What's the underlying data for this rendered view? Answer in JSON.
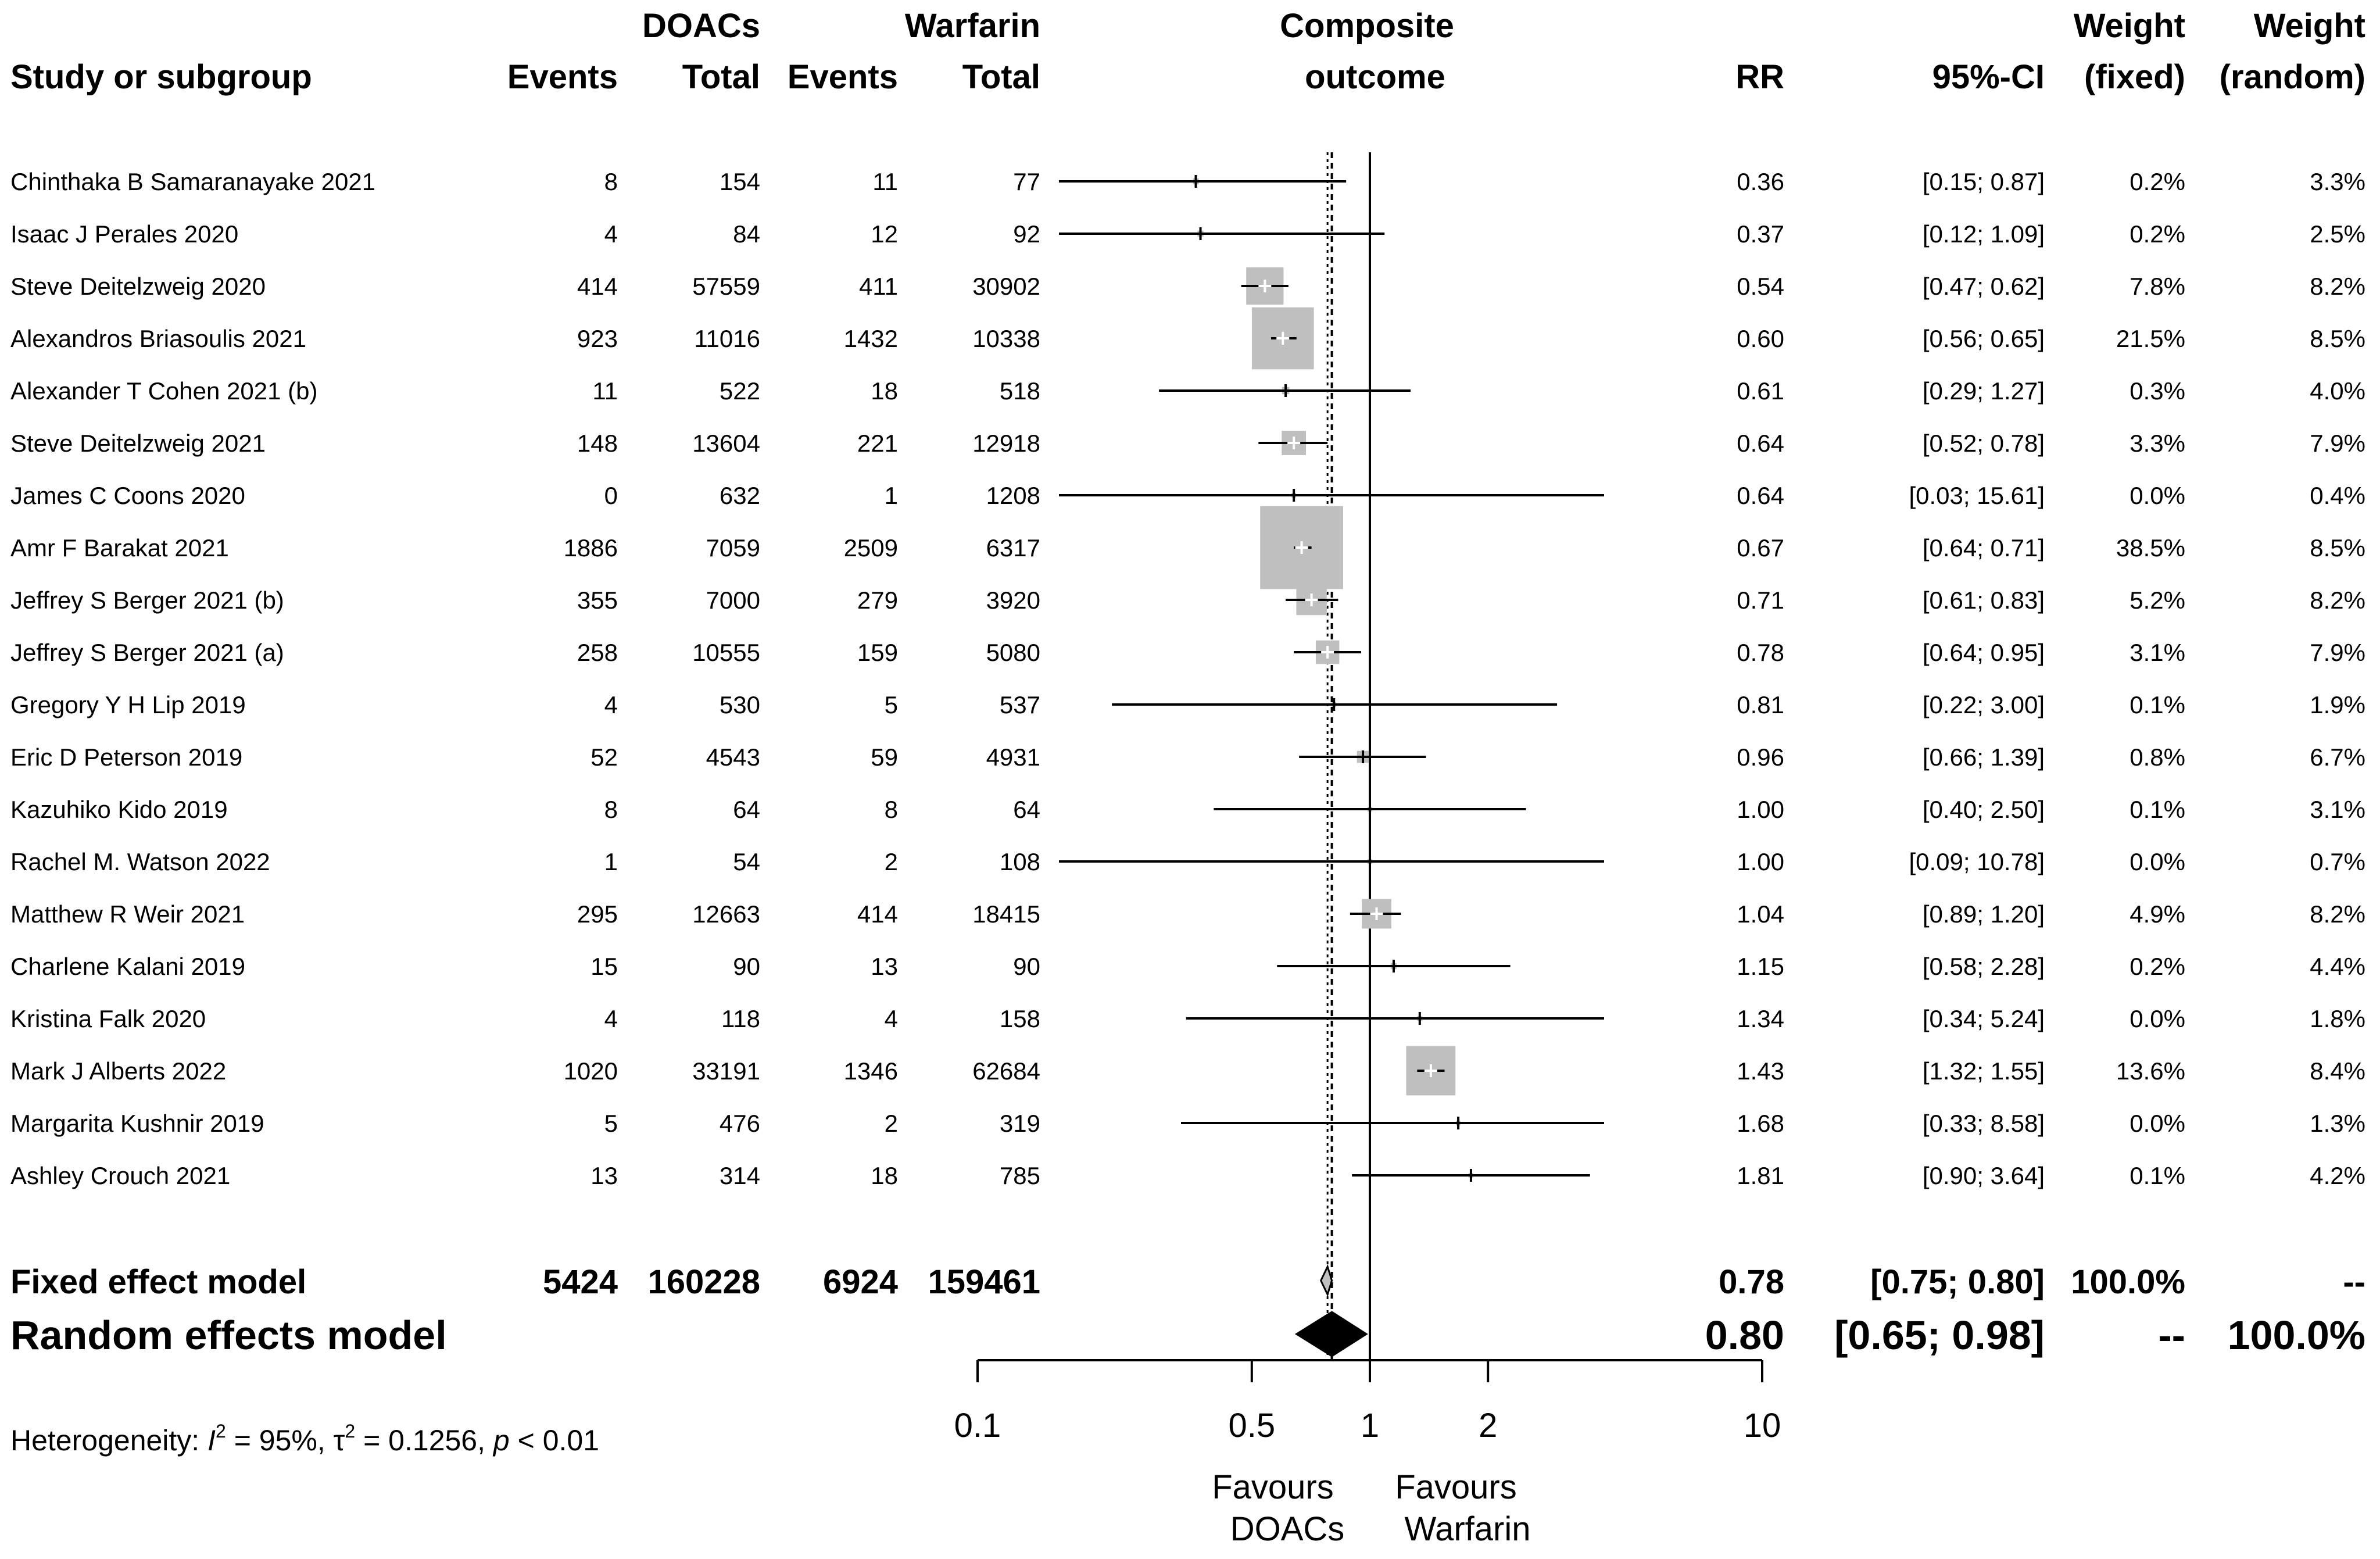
{
  "chart_data": {
    "type": "forest",
    "headers": {
      "study": "Study or subgroup",
      "doacs_group": "DOACs",
      "warfarin_group": "Warfarin",
      "events": "Events",
      "total": "Total",
      "plot_title_line1": "Composite",
      "plot_title_line2": "outcome",
      "rr": "RR",
      "ci": "95%-CI",
      "weight_line1": "Weight",
      "weight_fixed": "(fixed)",
      "weight_random": "(random)"
    },
    "studies": [
      {
        "name": "Chinthaka B Samaranayake 2021",
        "doac_events": "8",
        "doac_total": "154",
        "warf_events": "11",
        "warf_total": "77",
        "rr": 0.36,
        "lo": 0.15,
        "hi": 0.87,
        "rr_text": "0.36",
        "ci_text": "[0.15;  0.87]",
        "w_fixed": "0.2%",
        "w_random": "3.3%",
        "w_fixed_value": 0.2
      },
      {
        "name": "Isaac J Perales 2020",
        "doac_events": "4",
        "doac_total": "84",
        "warf_events": "12",
        "warf_total": "92",
        "rr": 0.37,
        "lo": 0.12,
        "hi": 1.09,
        "rr_text": "0.37",
        "ci_text": "[0.12;  1.09]",
        "w_fixed": "0.2%",
        "w_random": "2.5%",
        "w_fixed_value": 0.2
      },
      {
        "name": "Steve Deitelzweig 2020",
        "doac_events": "414",
        "doac_total": "57559",
        "warf_events": "411",
        "warf_total": "30902",
        "rr": 0.54,
        "lo": 0.47,
        "hi": 0.62,
        "rr_text": "0.54",
        "ci_text": "[0.47;  0.62]",
        "w_fixed": "7.8%",
        "w_random": "8.2%",
        "w_fixed_value": 7.8
      },
      {
        "name": "Alexandros Briasoulis 2021",
        "doac_events": "923",
        "doac_total": "11016",
        "warf_events": "1432",
        "warf_total": "10338",
        "rr": 0.6,
        "lo": 0.56,
        "hi": 0.65,
        "rr_text": "0.60",
        "ci_text": "[0.56;  0.65]",
        "w_fixed": "21.5%",
        "w_random": "8.5%",
        "w_fixed_value": 21.5
      },
      {
        "name": "Alexander T Cohen 2021 (b)",
        "doac_events": "11",
        "doac_total": "522",
        "warf_events": "18",
        "warf_total": "518",
        "rr": 0.61,
        "lo": 0.29,
        "hi": 1.27,
        "rr_text": "0.61",
        "ci_text": "[0.29;  1.27]",
        "w_fixed": "0.3%",
        "w_random": "4.0%",
        "w_fixed_value": 0.3
      },
      {
        "name": "Steve Deitelzweig 2021",
        "doac_events": "148",
        "doac_total": "13604",
        "warf_events": "221",
        "warf_total": "12918",
        "rr": 0.64,
        "lo": 0.52,
        "hi": 0.78,
        "rr_text": "0.64",
        "ci_text": "[0.52;  0.78]",
        "w_fixed": "3.3%",
        "w_random": "7.9%",
        "w_fixed_value": 3.3
      },
      {
        "name": "James C Coons 2020",
        "doac_events": "0",
        "doac_total": "632",
        "warf_events": "1",
        "warf_total": "1208",
        "rr": 0.64,
        "lo": 0.03,
        "hi": 15.61,
        "rr_text": "0.64",
        "ci_text": "[0.03; 15.61]",
        "w_fixed": "0.0%",
        "w_random": "0.4%",
        "w_fixed_value": 0.0
      },
      {
        "name": "Amr F Barakat 2021",
        "doac_events": "1886",
        "doac_total": "7059",
        "warf_events": "2509",
        "warf_total": "6317",
        "rr": 0.67,
        "lo": 0.64,
        "hi": 0.71,
        "rr_text": "0.67",
        "ci_text": "[0.64;  0.71]",
        "w_fixed": "38.5%",
        "w_random": "8.5%",
        "w_fixed_value": 38.5
      },
      {
        "name": "Jeffrey S Berger 2021 (b)",
        "doac_events": "355",
        "doac_total": "7000",
        "warf_events": "279",
        "warf_total": "3920",
        "rr": 0.71,
        "lo": 0.61,
        "hi": 0.83,
        "rr_text": "0.71",
        "ci_text": "[0.61;  0.83]",
        "w_fixed": "5.2%",
        "w_random": "8.2%",
        "w_fixed_value": 5.2
      },
      {
        "name": "Jeffrey S Berger 2021 (a)",
        "doac_events": "258",
        "doac_total": "10555",
        "warf_events": "159",
        "warf_total": "5080",
        "rr": 0.78,
        "lo": 0.64,
        "hi": 0.95,
        "rr_text": "0.78",
        "ci_text": "[0.64;  0.95]",
        "w_fixed": "3.1%",
        "w_random": "7.9%",
        "w_fixed_value": 3.1
      },
      {
        "name": "Gregory Y H Lip 2019",
        "doac_events": "4",
        "doac_total": "530",
        "warf_events": "5",
        "warf_total": "537",
        "rr": 0.81,
        "lo": 0.22,
        "hi": 3.0,
        "rr_text": "0.81",
        "ci_text": "[0.22;  3.00]",
        "w_fixed": "0.1%",
        "w_random": "1.9%",
        "w_fixed_value": 0.1
      },
      {
        "name": "Eric D Peterson 2019",
        "doac_events": "52",
        "doac_total": "4543",
        "warf_events": "59",
        "warf_total": "4931",
        "rr": 0.96,
        "lo": 0.66,
        "hi": 1.39,
        "rr_text": "0.96",
        "ci_text": "[0.66;  1.39]",
        "w_fixed": "0.8%",
        "w_random": "6.7%",
        "w_fixed_value": 0.8
      },
      {
        "name": "Kazuhiko Kido 2019",
        "doac_events": "8",
        "doac_total": "64",
        "warf_events": "8",
        "warf_total": "64",
        "rr": 1.0,
        "lo": 0.4,
        "hi": 2.5,
        "rr_text": "1.00",
        "ci_text": "[0.40;  2.50]",
        "w_fixed": "0.1%",
        "w_random": "3.1%",
        "w_fixed_value": 0.1
      },
      {
        "name": "Rachel M. Watson 2022",
        "doac_events": "1",
        "doac_total": "54",
        "warf_events": "2",
        "warf_total": "108",
        "rr": 1.0,
        "lo": 0.09,
        "hi": 10.78,
        "rr_text": "1.00",
        "ci_text": "[0.09; 10.78]",
        "w_fixed": "0.0%",
        "w_random": "0.7%",
        "w_fixed_value": 0.0
      },
      {
        "name": "Matthew R Weir 2021",
        "doac_events": "295",
        "doac_total": "12663",
        "warf_events": "414",
        "warf_total": "18415",
        "rr": 1.04,
        "lo": 0.89,
        "hi": 1.2,
        "rr_text": "1.04",
        "ci_text": "[0.89;  1.20]",
        "w_fixed": "4.9%",
        "w_random": "8.2%",
        "w_fixed_value": 4.9
      },
      {
        "name": "Charlene Kalani 2019",
        "doac_events": "15",
        "doac_total": "90",
        "warf_events": "13",
        "warf_total": "90",
        "rr": 1.15,
        "lo": 0.58,
        "hi": 2.28,
        "rr_text": "1.15",
        "ci_text": "[0.58;  2.28]",
        "w_fixed": "0.2%",
        "w_random": "4.4%",
        "w_fixed_value": 0.2
      },
      {
        "name": "Kristina Falk 2020",
        "doac_events": "4",
        "doac_total": "118",
        "warf_events": "4",
        "warf_total": "158",
        "rr": 1.34,
        "lo": 0.34,
        "hi": 5.24,
        "rr_text": "1.34",
        "ci_text": "[0.34;  5.24]",
        "w_fixed": "0.0%",
        "w_random": "1.8%",
        "w_fixed_value": 0.0
      },
      {
        "name": "Mark J Alberts 2022",
        "doac_events": "1020",
        "doac_total": "33191",
        "warf_events": "1346",
        "warf_total": "62684",
        "rr": 1.43,
        "lo": 1.32,
        "hi": 1.55,
        "rr_text": "1.43",
        "ci_text": "[1.32;  1.55]",
        "w_fixed": "13.6%",
        "w_random": "8.4%",
        "w_fixed_value": 13.6
      },
      {
        "name": "Margarita Kushnir 2019",
        "doac_events": "5",
        "doac_total": "476",
        "warf_events": "2",
        "warf_total": "319",
        "rr": 1.68,
        "lo": 0.33,
        "hi": 8.58,
        "rr_text": "1.68",
        "ci_text": "[0.33;  8.58]",
        "w_fixed": "0.0%",
        "w_random": "1.3%",
        "w_fixed_value": 0.0
      },
      {
        "name": "Ashley Crouch 2021",
        "doac_events": "13",
        "doac_total": "314",
        "warf_events": "18",
        "warf_total": "785",
        "rr": 1.81,
        "lo": 0.9,
        "hi": 3.64,
        "rr_text": "1.81",
        "ci_text": "[0.90;  3.64]",
        "w_fixed": "0.1%",
        "w_random": "4.2%",
        "w_fixed_value": 0.1
      }
    ],
    "fixed": {
      "label": "Fixed effect model",
      "doac_events": "5424",
      "doac_total": "160228",
      "warf_events": "6924",
      "warf_total": "159461",
      "rr": 0.78,
      "lo": 0.75,
      "hi": 0.8,
      "rr_text": "0.78",
      "ci_text": "[0.75;  0.80]",
      "w_fixed": "100.0%",
      "w_random": "--"
    },
    "random": {
      "label": "Random effects model",
      "rr": 0.8,
      "lo": 0.65,
      "hi": 0.98,
      "rr_text": "0.80",
      "ci_text": "[0.65;  0.98]",
      "w_fixed": "--",
      "w_random": "100.0%"
    },
    "heterogeneity": {
      "prefix": "Heterogeneity: ",
      "i2_letter": "I",
      "i2_sup": "2",
      "i2_value": " = 95%, ",
      "tau_letter": "τ",
      "tau_sup": "2",
      "tau_value": " = 0.1256, ",
      "p_letter": "p",
      "p_value": " < 0.01"
    },
    "x_axis": {
      "scale": "log",
      "ticks": [
        0.1,
        0.5,
        1,
        2,
        10
      ],
      "tick_labels": [
        "0.1",
        "0.5",
        "1",
        "2",
        "10"
      ],
      "null_value": 1
    },
    "favours_left": [
      "Favours",
      "DOACs"
    ],
    "favours_right": [
      "Favours",
      "Warfarin"
    ]
  }
}
